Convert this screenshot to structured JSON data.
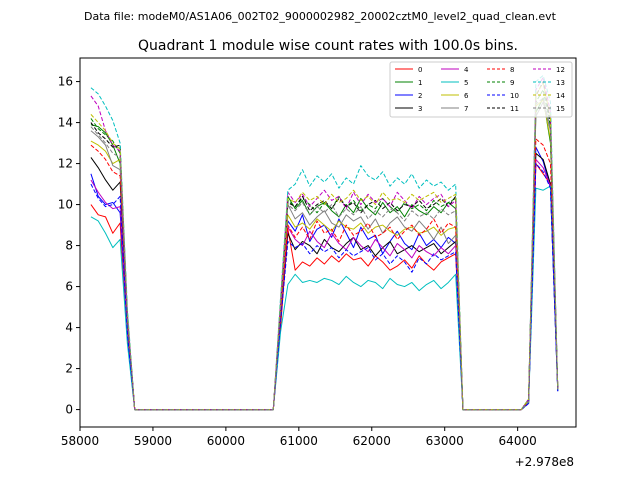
{
  "figure": {
    "suptitle": "Data file: modeM0/AS1A06_002T02_9000002982_20002cztM0_level2_quad_clean.evt"
  },
  "chart_data": {
    "type": "line",
    "title": "Quadrant 1 module wise count rates with 100.0s bins.",
    "xlabel": "",
    "ylabel": "",
    "offset_label": "+2.978e8",
    "xlim": [
      58000,
      64800
    ],
    "ylim": [
      -0.85,
      17.15
    ],
    "xticks": [
      58000,
      59000,
      60000,
      61000,
      62000,
      63000,
      64000
    ],
    "xtick_labels": [
      "58000",
      "59000",
      "60000",
      "61000",
      "62000",
      "63000",
      "64000"
    ],
    "yticks": [
      0,
      2,
      4,
      6,
      8,
      10,
      12,
      14,
      16
    ],
    "ytick_labels": [
      "0",
      "2",
      "4",
      "6",
      "8",
      "10",
      "12",
      "14",
      "16"
    ],
    "grid": false,
    "legend_position": "top-right",
    "legend_columns": 4,
    "x": [
      58150,
      58250,
      58350,
      58450,
      58550,
      58650,
      58750,
      58850,
      58950,
      59050,
      59150,
      59250,
      59350,
      59450,
      59550,
      59650,
      59750,
      59850,
      59950,
      60050,
      60150,
      60250,
      60350,
      60450,
      60550,
      60650,
      60750,
      60850,
      60950,
      61050,
      61150,
      61250,
      61350,
      61450,
      61550,
      61650,
      61750,
      61850,
      61950,
      62050,
      62150,
      62250,
      62350,
      62450,
      62550,
      62650,
      62750,
      62850,
      62950,
      63050,
      63150,
      63250,
      63350,
      63450,
      63550,
      63650,
      63750,
      63850,
      63950,
      64050,
      64150,
      64250,
      64350,
      64450,
      64550
    ],
    "series": [
      {
        "name": "0",
        "color": "#ff0000",
        "dash": false,
        "values": [
          10.0,
          9.5,
          9.4,
          8.6,
          9.1,
          3.5,
          0,
          0,
          0,
          0,
          0,
          0,
          0,
          0,
          0,
          0,
          0,
          0,
          0,
          0,
          0,
          0,
          0,
          0,
          0,
          0,
          4.0,
          8.8,
          6.8,
          7.2,
          7.0,
          7.4,
          7.1,
          7.5,
          7.2,
          7.6,
          7.3,
          7.4,
          7.0,
          7.5,
          7.2,
          6.8,
          7.0,
          7.3,
          6.9,
          7.5,
          7.1,
          6.8,
          7.2,
          7.4,
          7.6,
          0,
          0,
          0,
          0,
          0,
          0,
          0,
          0,
          0,
          0.3,
          12.0,
          11.5,
          11.0,
          1.0
        ]
      },
      {
        "name": "1",
        "color": "#008000",
        "dash": false,
        "values": [
          13.9,
          13.8,
          13.5,
          12.9,
          12.0,
          4.5,
          0,
          0,
          0,
          0,
          0,
          0,
          0,
          0,
          0,
          0,
          0,
          0,
          0,
          0,
          0,
          0,
          0,
          0,
          0,
          0,
          5.0,
          10.4,
          9.8,
          10.2,
          9.5,
          9.9,
          10.1,
          9.7,
          9.4,
          10.0,
          9.6,
          10.3,
          9.8,
          9.5,
          10.1,
          9.6,
          9.9,
          9.4,
          10.0,
          9.7,
          9.5,
          9.9,
          9.6,
          10.1,
          9.8,
          0,
          0,
          0,
          0,
          0,
          0,
          0,
          0,
          0,
          0.5,
          14.5,
          15.2,
          13.0,
          1.0
        ]
      },
      {
        "name": "2",
        "color": "#0000ff",
        "dash": false,
        "values": [
          11.5,
          10.4,
          10.0,
          10.1,
          9.6,
          3.9,
          0,
          0,
          0,
          0,
          0,
          0,
          0,
          0,
          0,
          0,
          0,
          0,
          0,
          0,
          0,
          0,
          0,
          0,
          0,
          0,
          4.8,
          9.2,
          8.7,
          9.5,
          8.2,
          8.8,
          9.0,
          8.4,
          9.3,
          8.6,
          7.9,
          8.9,
          8.3,
          8.5,
          7.6,
          8.2,
          8.7,
          8.1,
          7.8,
          8.6,
          8.0,
          8.3,
          7.9,
          8.4,
          8.1,
          0,
          0,
          0,
          0,
          0,
          0,
          0,
          0,
          0,
          0.3,
          12.8,
          12.1,
          10.8,
          0.9
        ]
      },
      {
        "name": "3",
        "color": "#000000",
        "dash": false,
        "values": [
          12.3,
          11.8,
          11.2,
          10.7,
          11.1,
          4.2,
          0,
          0,
          0,
          0,
          0,
          0,
          0,
          0,
          0,
          0,
          0,
          0,
          0,
          0,
          0,
          0,
          0,
          0,
          0,
          0,
          4.5,
          8.6,
          7.8,
          8.2,
          8.0,
          7.6,
          8.3,
          7.9,
          7.7,
          8.1,
          8.4,
          7.8,
          8.0,
          7.5,
          7.9,
          8.2,
          7.6,
          7.8,
          8.0,
          7.7,
          7.9,
          8.1,
          7.6,
          7.9,
          8.2,
          0,
          0,
          0,
          0,
          0,
          0,
          0,
          0,
          0,
          0.4,
          12.5,
          12.2,
          11.0,
          1.0
        ]
      },
      {
        "name": "4",
        "color": "#bf00bf",
        "dash": false,
        "values": [
          11.2,
          10.6,
          10.1,
          9.8,
          9.9,
          3.8,
          0,
          0,
          0,
          0,
          0,
          0,
          0,
          0,
          0,
          0,
          0,
          0,
          0,
          0,
          0,
          0,
          0,
          0,
          0,
          0,
          4.6,
          8.9,
          8.3,
          8.0,
          8.7,
          8.2,
          7.9,
          8.6,
          8.1,
          7.8,
          8.4,
          8.0,
          7.7,
          8.3,
          7.9,
          7.5,
          8.1,
          7.8,
          7.4,
          8.0,
          7.7,
          7.5,
          7.9,
          7.6,
          8.0,
          0,
          0,
          0,
          0,
          0,
          0,
          0,
          0,
          0,
          0.3,
          12.2,
          11.8,
          10.9,
          0.9
        ]
      },
      {
        "name": "5",
        "color": "#00bfbf",
        "dash": false,
        "values": [
          9.4,
          9.2,
          8.6,
          7.9,
          8.3,
          3.2,
          0,
          0,
          0,
          0,
          0,
          0,
          0,
          0,
          0,
          0,
          0,
          0,
          0,
          0,
          0,
          0,
          0,
          0,
          0,
          0,
          3.8,
          6.1,
          6.6,
          6.2,
          6.3,
          6.2,
          6.4,
          6.3,
          6.1,
          6.5,
          6.2,
          6.0,
          6.3,
          6.2,
          5.9,
          6.4,
          6.1,
          6.0,
          6.2,
          5.8,
          6.1,
          6.3,
          5.9,
          6.2,
          6.6,
          0,
          0,
          0,
          0,
          0,
          0,
          0,
          0,
          0,
          0.3,
          10.8,
          10.7,
          10.9,
          0.9
        ]
      },
      {
        "name": "6",
        "color": "#bfbf00",
        "dash": false,
        "values": [
          13.1,
          12.9,
          12.6,
          12.0,
          12.2,
          4.3,
          0,
          0,
          0,
          0,
          0,
          0,
          0,
          0,
          0,
          0,
          0,
          0,
          0,
          0,
          0,
          0,
          0,
          0,
          0,
          0,
          4.9,
          9.5,
          8.9,
          9.1,
          8.8,
          9.3,
          9.0,
          8.7,
          9.2,
          8.9,
          8.8,
          9.1,
          8.6,
          8.9,
          9.0,
          8.7,
          8.5,
          8.8,
          8.9,
          8.6,
          8.7,
          8.9,
          8.5,
          8.8,
          8.9,
          0,
          0,
          0,
          0,
          0,
          0,
          0,
          0,
          0,
          0.4,
          14.8,
          15.1,
          13.2,
          1.0
        ]
      },
      {
        "name": "7",
        "color": "#808080",
        "dash": false,
        "values": [
          13.6,
          13.3,
          12.9,
          11.9,
          11.7,
          4.4,
          0,
          0,
          0,
          0,
          0,
          0,
          0,
          0,
          0,
          0,
          0,
          0,
          0,
          0,
          0,
          0,
          0,
          0,
          0,
          0,
          5.0,
          10.0,
          9.3,
          9.6,
          9.0,
          9.4,
          9.7,
          9.1,
          8.9,
          9.5,
          9.2,
          9.4,
          8.8,
          9.3,
          8.6,
          9.1,
          9.4,
          8.9,
          8.7,
          9.2,
          8.8,
          8.3,
          8.9,
          8.1,
          8.5,
          0,
          0,
          0,
          0,
          0,
          0,
          0,
          0,
          0,
          0.4,
          14.3,
          15.0,
          13.6,
          1.0
        ]
      },
      {
        "name": "8",
        "color": "#ff0000",
        "dash": true,
        "values": [
          12.9,
          12.6,
          12.2,
          11.6,
          11.4,
          4.1,
          0,
          0,
          0,
          0,
          0,
          0,
          0,
          0,
          0,
          0,
          0,
          0,
          0,
          0,
          0,
          0,
          0,
          0,
          0,
          0,
          4.7,
          9.0,
          8.4,
          8.9,
          8.3,
          9.2,
          8.6,
          8.8,
          8.2,
          9.0,
          8.5,
          8.7,
          9.1,
          8.4,
          8.6,
          8.9,
          8.3,
          8.7,
          9.0,
          8.5,
          8.8,
          9.3,
          8.6,
          9.1,
          8.9,
          0,
          0,
          0,
          0,
          0,
          0,
          0,
          0,
          0,
          0.4,
          13.2,
          12.9,
          12.0,
          1.0
        ]
      },
      {
        "name": "9",
        "color": "#008000",
        "dash": true,
        "values": [
          14.2,
          13.7,
          13.4,
          13.1,
          12.5,
          4.6,
          0,
          0,
          0,
          0,
          0,
          0,
          0,
          0,
          0,
          0,
          0,
          0,
          0,
          0,
          0,
          0,
          0,
          0,
          0,
          0,
          5.2,
          10.2,
          9.9,
          10.3,
          10.0,
          9.6,
          10.1,
          9.8,
          10.4,
          9.9,
          10.2,
          9.7,
          10.0,
          9.8,
          10.3,
          9.9,
          9.6,
          10.1,
          9.8,
          10.0,
          9.7,
          10.2,
          9.9,
          10.1,
          10.3,
          0,
          0,
          0,
          0,
          0,
          0,
          0,
          0,
          0,
          0.5,
          15.0,
          15.6,
          13.8,
          1.0
        ]
      },
      {
        "name": "10",
        "color": "#0000ff",
        "dash": true,
        "values": [
          11.0,
          10.3,
          9.9,
          10.0,
          10.4,
          3.7,
          0,
          0,
          0,
          0,
          0,
          0,
          0,
          0,
          0,
          0,
          0,
          0,
          0,
          0,
          0,
          0,
          0,
          0,
          0,
          0,
          4.3,
          8.2,
          7.9,
          8.1,
          7.6,
          8.0,
          7.7,
          7.9,
          7.4,
          7.8,
          7.5,
          7.7,
          7.9,
          7.3,
          7.6,
          7.1,
          7.5,
          7.2,
          6.7,
          7.4,
          7.1,
          7.6,
          7.3,
          7.5,
          7.7,
          0,
          0,
          0,
          0,
          0,
          0,
          0,
          0,
          0,
          0.3,
          12.0,
          11.6,
          10.8,
          0.9
        ]
      },
      {
        "name": "11",
        "color": "#000000",
        "dash": true,
        "values": [
          14.0,
          13.5,
          13.2,
          12.8,
          12.9,
          4.5,
          0,
          0,
          0,
          0,
          0,
          0,
          0,
          0,
          0,
          0,
          0,
          0,
          0,
          0,
          0,
          0,
          0,
          0,
          0,
          0,
          5.1,
          10.1,
          9.9,
          10.4,
          9.7,
          10.0,
          10.2,
          9.8,
          10.3,
          9.9,
          10.1,
          9.6,
          10.0,
          10.2,
          9.8,
          10.1,
          9.7,
          10.0,
          9.9,
          10.2,
          9.8,
          10.0,
          10.3,
          9.9,
          10.4,
          0,
          0,
          0,
          0,
          0,
          0,
          0,
          0,
          0,
          0.5,
          15.3,
          16.0,
          14.0,
          1.0
        ]
      },
      {
        "name": "12",
        "color": "#bf00bf",
        "dash": true,
        "values": [
          15.3,
          14.8,
          13.6,
          12.9,
          12.6,
          4.7,
          0,
          0,
          0,
          0,
          0,
          0,
          0,
          0,
          0,
          0,
          0,
          0,
          0,
          0,
          0,
          0,
          0,
          0,
          0,
          0,
          5.3,
          10.6,
          10.1,
          10.5,
          9.9,
          10.3,
          10.7,
          10.2,
          10.4,
          9.8,
          10.6,
          10.0,
          10.5,
          10.1,
          10.3,
          9.9,
          10.6,
          10.2,
          9.8,
          10.4,
          10.0,
          10.3,
          10.5,
          9.9,
          10.2,
          0,
          0,
          0,
          0,
          0,
          0,
          0,
          0,
          0,
          0.5,
          15.6,
          16.2,
          14.5,
          1.0
        ]
      },
      {
        "name": "13",
        "color": "#00bfbf",
        "dash": true,
        "values": [
          15.7,
          15.4,
          14.8,
          14.1,
          13.0,
          4.9,
          0,
          0,
          0,
          0,
          0,
          0,
          0,
          0,
          0,
          0,
          0,
          0,
          0,
          0,
          0,
          0,
          0,
          0,
          0,
          0,
          5.5,
          10.7,
          11.0,
          11.7,
          10.9,
          11.4,
          11.1,
          11.5,
          10.8,
          11.3,
          11.0,
          11.9,
          11.4,
          11.2,
          11.6,
          10.9,
          11.3,
          11.0,
          11.5,
          10.8,
          11.2,
          10.9,
          11.1,
          10.7,
          11.0,
          0,
          0,
          0,
          0,
          0,
          0,
          0,
          0,
          0,
          0.5,
          16.0,
          16.3,
          15.0,
          1.0
        ]
      },
      {
        "name": "14",
        "color": "#bfbf00",
        "dash": true,
        "values": [
          14.4,
          14.0,
          13.6,
          13.0,
          12.7,
          4.6,
          0,
          0,
          0,
          0,
          0,
          0,
          0,
          0,
          0,
          0,
          0,
          0,
          0,
          0,
          0,
          0,
          0,
          0,
          0,
          0,
          5.2,
          10.3,
          10.1,
          10.6,
          10.2,
          10.4,
          10.0,
          10.5,
          10.1,
          10.3,
          10.7,
          10.2,
          10.4,
          10.0,
          10.6,
          10.2,
          10.3,
          10.1,
          10.5,
          10.2,
          10.4,
          10.6,
          10.1,
          10.3,
          10.5,
          0,
          0,
          0,
          0,
          0,
          0,
          0,
          0,
          0,
          0.5,
          15.4,
          15.9,
          14.3,
          1.0
        ]
      },
      {
        "name": "15",
        "color": "#808080",
        "dash": true,
        "values": [
          13.8,
          13.4,
          13.0,
          12.5,
          12.3,
          4.5,
          0,
          0,
          0,
          0,
          0,
          0,
          0,
          0,
          0,
          0,
          0,
          0,
          0,
          0,
          0,
          0,
          0,
          0,
          0,
          0,
          5.0,
          10.0,
          9.7,
          10.1,
          9.5,
          9.9,
          9.6,
          10.0,
          9.4,
          9.8,
          9.5,
          9.9,
          9.3,
          9.7,
          9.4,
          9.8,
          9.6,
          9.2,
          9.7,
          9.4,
          9.6,
          9.3,
          9.8,
          9.5,
          9.7,
          0,
          0,
          0,
          0,
          0,
          0,
          0,
          0,
          0,
          0.4,
          14.9,
          15.2,
          13.7,
          1.0
        ]
      }
    ]
  }
}
